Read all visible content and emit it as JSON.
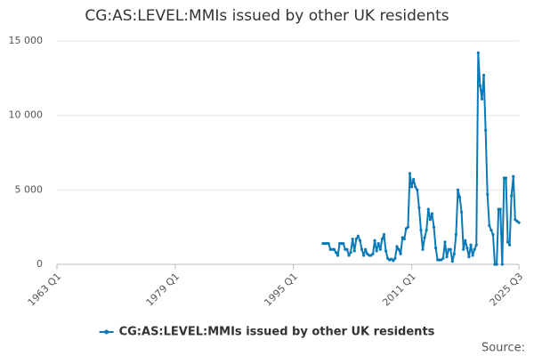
{
  "chart_data": {
    "type": "line",
    "title": "CG:AS:LEVEL:MMIs issued by other UK residents",
    "x": [
      1999,
      1999.25,
      1999.5,
      1999.75,
      2000,
      2000.25,
      2000.5,
      2000.75,
      2001,
      2001.25,
      2001.5,
      2001.75,
      2002,
      2002.25,
      2002.5,
      2002.75,
      2003,
      2003.25,
      2003.5,
      2003.75,
      2004,
      2004.25,
      2004.5,
      2004.75,
      2005,
      2005.25,
      2005.5,
      2005.75,
      2006,
      2006.25,
      2006.5,
      2006.75,
      2007,
      2007.25,
      2007.5,
      2007.75,
      2008,
      2008.25,
      2008.5,
      2008.75,
      2009,
      2009.25,
      2009.5,
      2009.75,
      2010,
      2010.25,
      2010.5,
      2010.75,
      2011,
      2011.25,
      2011.5,
      2011.75,
      2012,
      2012.25,
      2012.5,
      2012.75,
      2013,
      2013.25,
      2013.5,
      2013.75,
      2014,
      2014.25,
      2014.5,
      2014.75,
      2015,
      2015.25,
      2015.5,
      2015.75,
      2016,
      2016.25,
      2016.5,
      2016.75,
      2017,
      2017.25,
      2017.5,
      2017.75,
      2018,
      2018.25,
      2018.5,
      2018.75,
      2019,
      2019.25,
      2019.5,
      2019.75,
      2020,
      2020.25,
      2020.5,
      2020.75,
      2021,
      2021.25,
      2021.5,
      2021.75,
      2022,
      2022.25,
      2022.5,
      2022.75,
      2023,
      2023.25,
      2023.5,
      2023.75,
      2024,
      2024.25,
      2024.5,
      2024.75,
      2025,
      2025.25,
      2025.5
    ],
    "series": [
      {
        "name": "CG:AS:LEVEL:MMIs issued by other UK residents",
        "color": "#0a79b5",
        "values": [
          1400,
          1400,
          1400,
          1400,
          1000,
          1000,
          1000,
          800,
          600,
          1400,
          1400,
          1400,
          1000,
          1000,
          600,
          800,
          1700,
          900,
          1700,
          1900,
          1600,
          1000,
          600,
          1000,
          700,
          600,
          600,
          700,
          1600,
          900,
          1400,
          1000,
          1700,
          2000,
          900,
          400,
          300,
          350,
          250,
          400,
          1200,
          1000,
          700,
          1800,
          1700,
          2400,
          2500,
          6100,
          5200,
          5700,
          5200,
          5000,
          3800,
          2300,
          1000,
          1800,
          2300,
          3700,
          3000,
          3400,
          2500,
          1100,
          300,
          300,
          300,
          400,
          1500,
          500,
          1000,
          1000,
          200,
          700,
          2000,
          5000,
          4500,
          3500,
          1000,
          1600,
          1100,
          500,
          1300,
          600,
          1000,
          1300,
          14200,
          12000,
          11100,
          12700,
          9000,
          4700,
          2600,
          2300,
          2000,
          0,
          0,
          3700,
          3700,
          0,
          5800,
          5800,
          1500,
          1300,
          4600,
          5900,
          3000,
          2900,
          2800
        ]
      }
    ],
    "xlim": [
      1963,
      2025.5
    ],
    "xticks": [
      {
        "value": 1963,
        "label": "1963 Q1"
      },
      {
        "value": 1979,
        "label": "1979 Q1"
      },
      {
        "value": 1995,
        "label": "1995 Q1"
      },
      {
        "value": 2011,
        "label": "2011 Q1"
      },
      {
        "value": 2025.5,
        "label": "2025 Q3"
      }
    ],
    "ylim": [
      0,
      15000
    ],
    "yticks": [
      0,
      {
        "value": 5000,
        "label": "5 000"
      },
      {
        "value": 10000,
        "label": "10 000"
      },
      {
        "value": 15000,
        "label": "15 000"
      }
    ],
    "grid": true,
    "legend": "bottom",
    "source": "Source:"
  }
}
